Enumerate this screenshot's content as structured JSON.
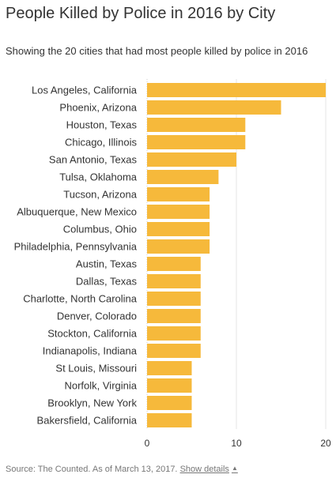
{
  "title": "People Killed by Police in 2016 by City",
  "subtitle": "Showing the 20 cities that had most people killed by police in 2016",
  "footer": {
    "source": "Source: The Counted. As of March 13, 2017.",
    "details_label": "Show details",
    "details_icon": "caret-up-icon"
  },
  "colors": {
    "bar": "#F6B93B",
    "grid": "#E6E6E6",
    "axis": "#CCCCCC"
  },
  "chart_data": {
    "type": "bar",
    "orientation": "horizontal",
    "categories": [
      "Los Angeles, California",
      "Phoenix, Arizona",
      "Houston, Texas",
      "Chicago, Illinois",
      "San Antonio, Texas",
      "Tulsa, Oklahoma",
      "Tucson, Arizona",
      "Albuquerque, New Mexico",
      "Columbus, Ohio",
      "Philadelphia, Pennsylvania",
      "Austin, Texas",
      "Dallas, Texas",
      "Charlotte, North Carolina",
      "Denver, Colorado",
      "Stockton, California",
      "Indianapolis, Indiana",
      "St Louis, Missouri",
      "Norfolk, Virginia",
      "Brooklyn, New York",
      "Bakersfield, California"
    ],
    "values": [
      20,
      15,
      11,
      11,
      10,
      8,
      7,
      7,
      7,
      7,
      6,
      6,
      6,
      6,
      6,
      6,
      5,
      5,
      5,
      5
    ],
    "xlim": [
      0,
      20
    ],
    "xticks": [
      0,
      10,
      20
    ],
    "grid": true
  }
}
